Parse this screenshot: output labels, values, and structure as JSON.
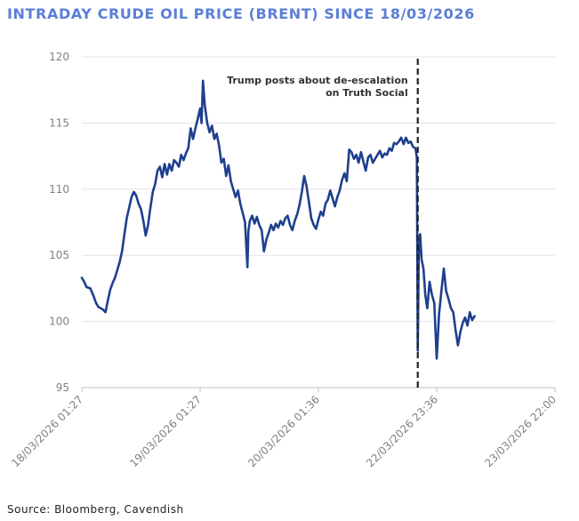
{
  "chart_data": {
    "type": "line",
    "title": "INTRADAY CRUDE OIL PRICE (BRENT) SINCE 18/03/2026",
    "xlabel": "",
    "ylabel": "",
    "ylim": [
      95,
      120
    ],
    "yticks": [
      95,
      100,
      105,
      110,
      115,
      120
    ],
    "xtick_labels": [
      "18/03/2026 01:27",
      "19/03/2026 01:27",
      "20/03/2026 01:36",
      "22/03/2026 23:36",
      "23/03/2026 22:00"
    ],
    "xtick_index": [
      0,
      0.25,
      0.5,
      0.75,
      1.0
    ],
    "grid": true,
    "series": [
      {
        "name": "Brent",
        "color": "#1f3f8f",
        "points": [
          [
            0.0,
            103.3
          ],
          [
            0.005,
            103.0
          ],
          [
            0.01,
            102.6
          ],
          [
            0.018,
            102.5
          ],
          [
            0.025,
            101.9
          ],
          [
            0.03,
            101.4
          ],
          [
            0.035,
            101.1
          ],
          [
            0.04,
            101.0
          ],
          [
            0.045,
            100.9
          ],
          [
            0.05,
            100.7
          ],
          [
            0.055,
            101.6
          ],
          [
            0.06,
            102.4
          ],
          [
            0.065,
            102.9
          ],
          [
            0.07,
            103.3
          ],
          [
            0.075,
            103.9
          ],
          [
            0.08,
            104.5
          ],
          [
            0.085,
            105.3
          ],
          [
            0.09,
            106.6
          ],
          [
            0.095,
            107.8
          ],
          [
            0.1,
            108.6
          ],
          [
            0.105,
            109.4
          ],
          [
            0.11,
            109.8
          ],
          [
            0.115,
            109.5
          ],
          [
            0.12,
            108.9
          ],
          [
            0.125,
            108.5
          ],
          [
            0.13,
            107.6
          ],
          [
            0.135,
            106.5
          ],
          [
            0.14,
            107.3
          ],
          [
            0.145,
            108.6
          ],
          [
            0.15,
            109.8
          ],
          [
            0.155,
            110.4
          ],
          [
            0.16,
            111.4
          ],
          [
            0.165,
            111.7
          ],
          [
            0.17,
            110.9
          ],
          [
            0.175,
            111.9
          ],
          [
            0.18,
            111.1
          ],
          [
            0.185,
            111.9
          ],
          [
            0.19,
            111.4
          ],
          [
            0.195,
            112.2
          ],
          [
            0.2,
            112.0
          ],
          [
            0.205,
            111.7
          ],
          [
            0.21,
            112.6
          ],
          [
            0.215,
            112.2
          ],
          [
            0.22,
            112.7
          ],
          [
            0.225,
            113.1
          ],
          [
            0.23,
            114.6
          ],
          [
            0.235,
            113.8
          ],
          [
            0.24,
            114.6
          ],
          [
            0.245,
            115.3
          ],
          [
            0.25,
            116.1
          ],
          [
            0.253,
            115.0
          ],
          [
            0.256,
            118.2
          ],
          [
            0.26,
            116.3
          ],
          [
            0.265,
            115.0
          ],
          [
            0.27,
            114.3
          ],
          [
            0.275,
            114.8
          ],
          [
            0.28,
            113.8
          ],
          [
            0.285,
            114.2
          ],
          [
            0.29,
            113.3
          ],
          [
            0.295,
            112.0
          ],
          [
            0.3,
            112.3
          ],
          [
            0.305,
            111.0
          ],
          [
            0.31,
            111.8
          ],
          [
            0.315,
            110.6
          ],
          [
            0.32,
            110.0
          ],
          [
            0.325,
            109.4
          ],
          [
            0.33,
            109.9
          ],
          [
            0.335,
            108.9
          ],
          [
            0.34,
            108.2
          ],
          [
            0.345,
            107.5
          ],
          [
            0.35,
            104.1
          ],
          [
            0.352,
            106.8
          ],
          [
            0.355,
            107.6
          ],
          [
            0.36,
            108.0
          ],
          [
            0.365,
            107.4
          ],
          [
            0.37,
            107.9
          ],
          [
            0.375,
            107.3
          ],
          [
            0.38,
            106.9
          ],
          [
            0.385,
            105.3
          ],
          [
            0.39,
            106.2
          ],
          [
            0.395,
            106.7
          ],
          [
            0.4,
            107.3
          ],
          [
            0.405,
            106.9
          ],
          [
            0.41,
            107.4
          ],
          [
            0.415,
            107.1
          ],
          [
            0.42,
            107.6
          ],
          [
            0.425,
            107.3
          ],
          [
            0.43,
            107.8
          ],
          [
            0.435,
            108.0
          ],
          [
            0.44,
            107.3
          ],
          [
            0.445,
            106.9
          ],
          [
            0.45,
            107.6
          ],
          [
            0.455,
            108.1
          ],
          [
            0.46,
            108.8
          ],
          [
            0.465,
            109.8
          ],
          [
            0.47,
            111.0
          ],
          [
            0.475,
            110.2
          ],
          [
            0.48,
            109.0
          ],
          [
            0.485,
            107.8
          ],
          [
            0.49,
            107.3
          ],
          [
            0.495,
            107.0
          ],
          [
            0.5,
            107.7
          ],
          [
            0.505,
            108.3
          ],
          [
            0.51,
            108.0
          ],
          [
            0.515,
            108.9
          ],
          [
            0.52,
            109.2
          ],
          [
            0.525,
            109.9
          ],
          [
            0.53,
            109.3
          ],
          [
            0.535,
            108.7
          ],
          [
            0.54,
            109.4
          ],
          [
            0.545,
            109.9
          ],
          [
            0.55,
            110.7
          ],
          [
            0.555,
            111.2
          ],
          [
            0.56,
            110.6
          ],
          [
            0.565,
            113.0
          ],
          [
            0.57,
            112.8
          ],
          [
            0.575,
            112.3
          ],
          [
            0.58,
            112.6
          ],
          [
            0.585,
            112.0
          ],
          [
            0.59,
            112.8
          ],
          [
            0.595,
            112.1
          ],
          [
            0.6,
            111.4
          ],
          [
            0.605,
            112.4
          ],
          [
            0.61,
            112.6
          ],
          [
            0.615,
            112.0
          ],
          [
            0.62,
            112.3
          ],
          [
            0.625,
            112.6
          ],
          [
            0.63,
            112.9
          ],
          [
            0.635,
            112.4
          ],
          [
            0.64,
            112.7
          ],
          [
            0.645,
            112.6
          ],
          [
            0.65,
            113.1
          ],
          [
            0.655,
            112.9
          ],
          [
            0.66,
            113.5
          ],
          [
            0.665,
            113.4
          ],
          [
            0.67,
            113.6
          ],
          [
            0.675,
            113.9
          ],
          [
            0.68,
            113.4
          ],
          [
            0.685,
            113.9
          ],
          [
            0.69,
            113.5
          ],
          [
            0.695,
            113.6
          ],
          [
            0.7,
            113.2
          ],
          [
            0.705,
            113.1
          ],
          [
            0.708,
            112.4
          ],
          [
            0.71,
            97.8
          ],
          [
            0.712,
            105.0
          ],
          [
            0.715,
            106.6
          ],
          [
            0.718,
            104.7
          ],
          [
            0.722,
            104.0
          ],
          [
            0.726,
            102.0
          ],
          [
            0.73,
            101.0
          ],
          [
            0.735,
            103.0
          ],
          [
            0.74,
            102.0
          ],
          [
            0.745,
            101.4
          ],
          [
            0.75,
            97.2
          ],
          [
            0.755,
            100.6
          ],
          [
            0.76,
            102.3
          ],
          [
            0.765,
            104.0
          ],
          [
            0.77,
            102.3
          ],
          [
            0.775,
            101.7
          ],
          [
            0.78,
            101.0
          ],
          [
            0.785,
            100.7
          ],
          [
            0.79,
            99.3
          ],
          [
            0.795,
            98.2
          ],
          [
            0.8,
            99.2
          ],
          [
            0.805,
            99.9
          ],
          [
            0.81,
            100.3
          ],
          [
            0.815,
            99.7
          ],
          [
            0.82,
            100.7
          ],
          [
            0.825,
            100.1
          ],
          [
            0.83,
            100.4
          ]
        ]
      }
    ],
    "annotations": [
      {
        "lines": [
          "Trump posts about de-escalation",
          "on Truth Social"
        ],
        "at_index": 0.71,
        "style": "dashed-vertical"
      }
    ]
  },
  "source": "Source: Bloomberg, Cavendish"
}
